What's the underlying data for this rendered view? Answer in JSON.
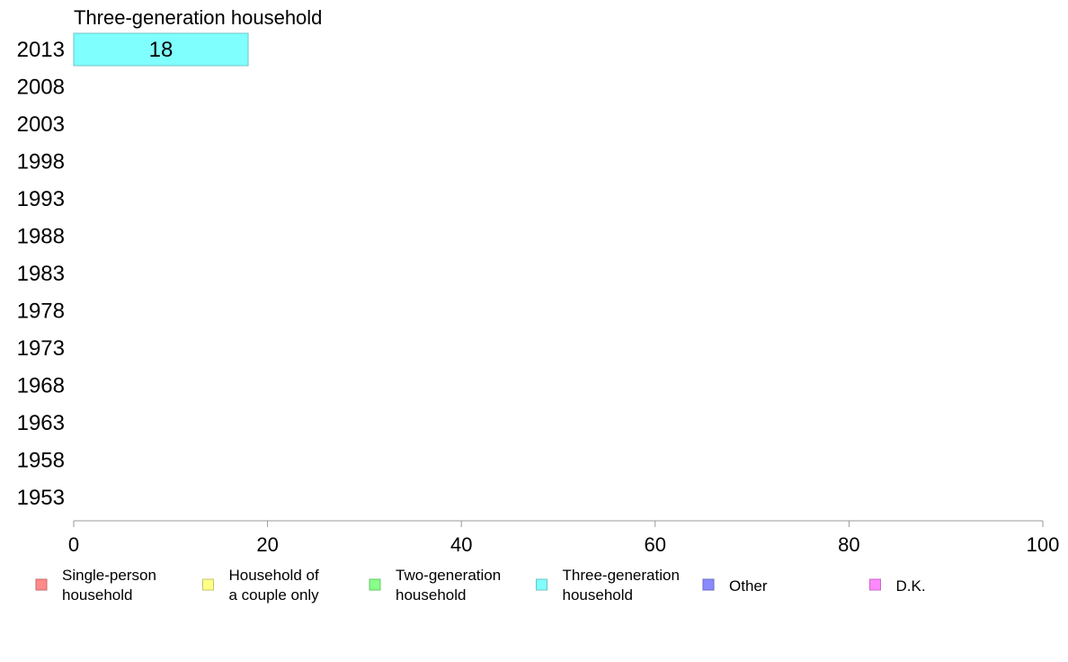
{
  "chart_data": {
    "type": "bar",
    "orientation": "horizontal",
    "categories": [
      "2013",
      "2008",
      "2003",
      "1998",
      "1993",
      "1988",
      "1983",
      "1978",
      "1973",
      "1968",
      "1963",
      "1958",
      "1953"
    ],
    "series": [
      {
        "name": "Three-generation household",
        "values": [
          18,
          null,
          null,
          null,
          null,
          null,
          null,
          null,
          null,
          null,
          null,
          null,
          null
        ],
        "color": "#80ffff",
        "border": "#6fc4c4"
      }
    ],
    "data_labels": [
      "18"
    ],
    "xlim": [
      0,
      100
    ],
    "xticks": [
      "0",
      "20",
      "40",
      "60",
      "80",
      "100"
    ],
    "title": "",
    "xlabel": "",
    "ylabel": "",
    "grid": false,
    "legend_position": "bottom",
    "legend": [
      {
        "line1": "Single-person",
        "line2": "household",
        "color": "#ff8a8a",
        "border": "#c46a6a"
      },
      {
        "line1": "Household of",
        "line2": "a couple only",
        "color": "#ffff88",
        "border": "#c4c46a"
      },
      {
        "line1": "Two-generation",
        "line2": "household",
        "color": "#88ff88",
        "border": "#6ac46a"
      },
      {
        "line1": "Three-generation",
        "line2": "household",
        "color": "#80ffff",
        "border": "#6fc4c4"
      },
      {
        "line1": "Other",
        "line2": "",
        "color": "#8a8aff",
        "border": "#6a6ac4"
      },
      {
        "line1": "D.K.",
        "line2": "",
        "color": "#ff88ff",
        "border": "#c46ac4"
      }
    ]
  }
}
